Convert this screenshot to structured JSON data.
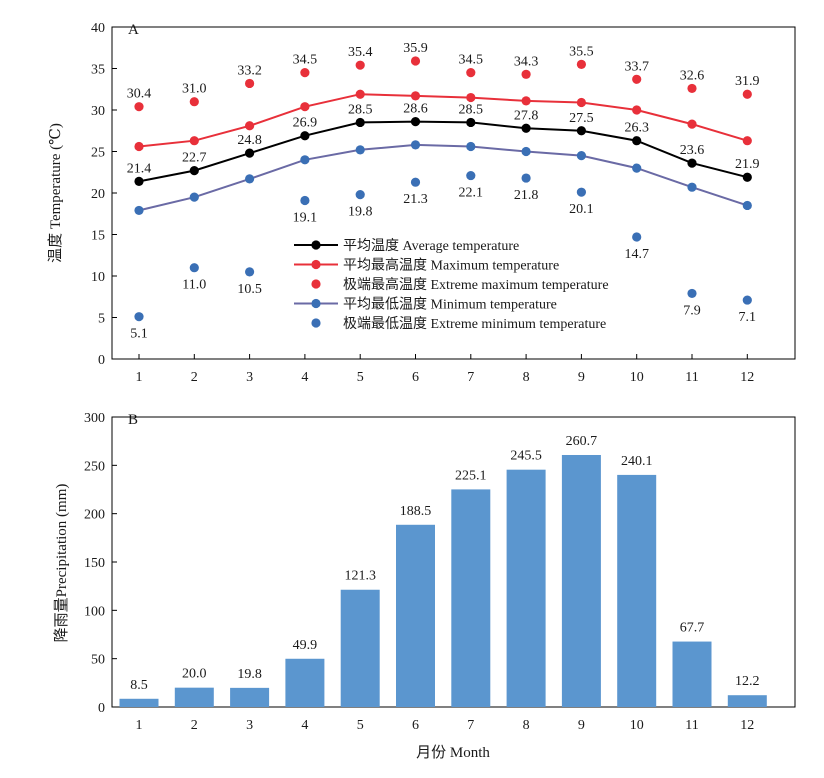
{
  "chart_data": [
    {
      "type": "line",
      "panel_label": "A",
      "ylabel": "温度 Temperature (℃)",
      "xlabel": "",
      "x": [
        1,
        2,
        3,
        4,
        5,
        6,
        7,
        8,
        9,
        10,
        11,
        12
      ],
      "xticks": [
        "1",
        "2",
        "3",
        "4",
        "5",
        "6",
        "7",
        "8",
        "9",
        "10",
        "11",
        "12"
      ],
      "ylim": [
        0,
        40
      ],
      "yticks": [
        0,
        5,
        10,
        15,
        20,
        25,
        30,
        35,
        40
      ],
      "grid": false,
      "legend_position": "lower-center",
      "series": [
        {
          "name": "平均温度 Average temperature",
          "style": "line-marker",
          "color": "#000000",
          "marker_color": "#000000",
          "show_labels": true,
          "label_position": "above",
          "values": [
            21.4,
            22.7,
            24.8,
            26.9,
            28.5,
            28.6,
            28.5,
            27.8,
            27.5,
            26.3,
            23.6,
            21.9
          ]
        },
        {
          "name": "平均最高温度 Maximum temperature",
          "style": "line-marker",
          "color": "#e8303a",
          "marker_color": "#e8303a",
          "show_labels": false,
          "values": [
            25.6,
            26.3,
            28.1,
            30.4,
            31.9,
            31.7,
            31.5,
            31.1,
            30.9,
            30.0,
            28.3,
            26.3
          ]
        },
        {
          "name": "极端最高温度 Extreme maximum temperature",
          "style": "marker",
          "color": "#e8303a",
          "marker_color": "#e8303a",
          "show_labels": true,
          "label_position": "above",
          "values": [
            30.4,
            31.0,
            33.2,
            34.5,
            35.4,
            35.9,
            34.5,
            34.3,
            35.5,
            33.7,
            32.6,
            31.9
          ]
        },
        {
          "name": "平均最低温度 Minimum temperature",
          "style": "line-marker",
          "color": "#6a6aa5",
          "marker_color": "#3a6fb5",
          "show_labels": false,
          "values": [
            17.9,
            19.5,
            21.7,
            24.0,
            25.2,
            25.8,
            25.6,
            25.0,
            24.5,
            23.0,
            20.7,
            18.5
          ]
        },
        {
          "name": "极端最低温度 Extreme minimum temperature",
          "style": "marker",
          "color": "#3a6fb5",
          "marker_color": "#3a6fb5",
          "show_labels": true,
          "label_position": "below",
          "values": [
            5.1,
            11.0,
            10.5,
            19.1,
            19.8,
            21.3,
            22.1,
            21.8,
            20.1,
            14.7,
            7.9,
            7.1
          ]
        }
      ]
    },
    {
      "type": "bar",
      "panel_label": "B",
      "ylabel": "降雨量Precipitation (mm)",
      "xlabel": "月份 Month",
      "categories": [
        "1",
        "2",
        "3",
        "4",
        "5",
        "6",
        "7",
        "8",
        "9",
        "10",
        "11",
        "12"
      ],
      "ylim": [
        0,
        300
      ],
      "yticks": [
        0,
        50,
        100,
        150,
        200,
        250,
        300
      ],
      "grid": false,
      "bar_color": "#5b96cf",
      "show_labels": true,
      "values": [
        8.5,
        20.0,
        19.8,
        49.9,
        121.3,
        188.5,
        225.1,
        245.5,
        260.7,
        240.1,
        67.7,
        12.2
      ]
    }
  ]
}
